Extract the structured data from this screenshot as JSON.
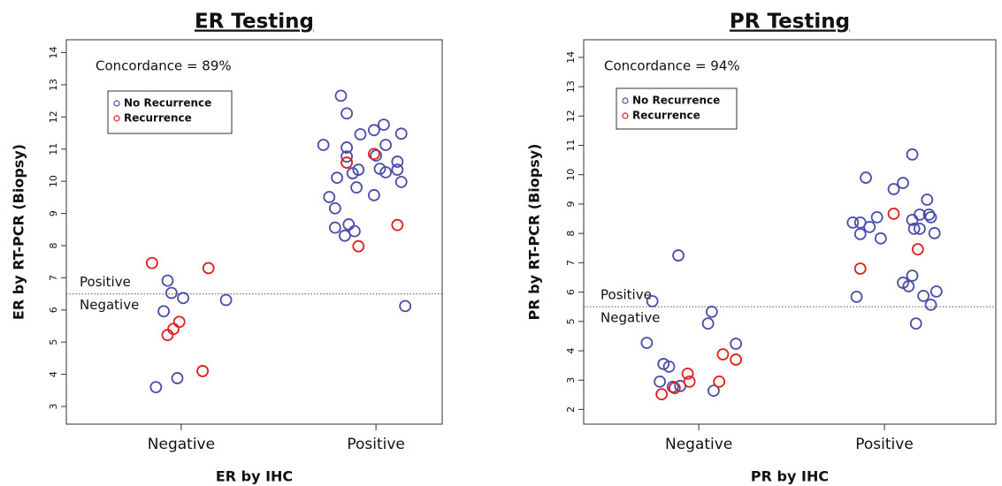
{
  "chart_data": [
    {
      "type": "scatter",
      "title": "ER Testing",
      "xlabel": "ER by IHC",
      "ylabel": "ER by RT-PCR (Biopsy)",
      "annotations": [
        "Concordance = 89%",
        "Positive",
        "Negative"
      ],
      "threshold": 6.5,
      "xlim": [
        0.41,
        2.34
      ],
      "ylim": [
        2.45,
        14.4
      ],
      "xticks": [
        {
          "value": 1,
          "label": "Negative"
        },
        {
          "value": 2,
          "label": "Positive"
        }
      ],
      "yticks": [
        3,
        4,
        5,
        6,
        7,
        8,
        9,
        10,
        11,
        12,
        13,
        14
      ],
      "legend": "upper left",
      "series": [
        {
          "name": "No Recurrence",
          "color": "#4b4fa8",
          "x": [
            0.93,
            0.95,
            1.01,
            0.91,
            1.23,
            0.87,
            0.98,
            1.82,
            1.85,
            1.73,
            1.85,
            1.92,
            2.04,
            1.99,
            2.05,
            2.13,
            1.85,
            2.0,
            2.11,
            1.91,
            2.02,
            1.88,
            2.05,
            1.8,
            2.11,
            2.13,
            1.9,
            1.99,
            1.76,
            1.79,
            1.86,
            1.79,
            1.89,
            1.84,
            2.15
          ],
          "values": [
            6.91,
            6.53,
            6.37,
            5.96,
            6.31,
            3.6,
            3.88,
            12.66,
            12.11,
            11.13,
            11.05,
            11.46,
            11.76,
            11.59,
            11.13,
            11.48,
            10.77,
            10.8,
            10.61,
            10.36,
            10.39,
            10.25,
            10.28,
            10.11,
            10.36,
            9.98,
            9.81,
            9.57,
            9.51,
            9.16,
            8.66,
            8.56,
            8.45,
            8.31,
            6.12
          ]
        },
        {
          "name": "Recurrence",
          "color": "#e02020",
          "x": [
            0.85,
            1.14,
            0.99,
            0.96,
            0.93,
            1.11,
            1.85,
            1.99,
            2.11,
            1.91
          ],
          "values": [
            7.46,
            7.3,
            5.63,
            5.41,
            5.22,
            4.1,
            10.58,
            10.85,
            8.64,
            7.98
          ]
        }
      ]
    },
    {
      "type": "scatter",
      "title": "PR Testing",
      "xlabel": "PR by IHC",
      "ylabel": "PR by RT-PCR (Biopsy)",
      "annotations": [
        "Concordance = 94%",
        "Positive",
        "Negative"
      ],
      "threshold": 5.5,
      "xlim": [
        0.38,
        2.6
      ],
      "ylim": [
        1.5,
        14.6
      ],
      "xticks": [
        {
          "value": 1,
          "label": "Negative"
        },
        {
          "value": 2,
          "label": "Positive"
        }
      ],
      "yticks": [
        2,
        3,
        4,
        5,
        6,
        7,
        8,
        9,
        10,
        11,
        12,
        13,
        14
      ],
      "legend": "upper left",
      "series": [
        {
          "name": "No Recurrence",
          "color": "#4b4fa8",
          "x": [
            0.89,
            0.75,
            1.07,
            1.05,
            0.72,
            1.2,
            0.81,
            0.84,
            0.79,
            0.9,
            0.86,
            1.08,
            2.15,
            1.9,
            2.1,
            2.05,
            2.23,
            1.96,
            2.15,
            2.24,
            2.25,
            2.19,
            1.83,
            1.87,
            1.92,
            2.16,
            2.19,
            1.87,
            1.98,
            2.27,
            2.15,
            2.1,
            2.13,
            1.85,
            2.21,
            2.28,
            2.25,
            2.17
          ],
          "values": [
            7.25,
            5.69,
            5.33,
            4.93,
            4.27,
            4.24,
            3.55,
            3.46,
            2.95,
            2.8,
            2.77,
            2.64,
            10.69,
            9.9,
            9.72,
            9.51,
            9.15,
            8.55,
            8.46,
            8.64,
            8.55,
            8.64,
            8.37,
            8.37,
            8.22,
            8.16,
            8.16,
            7.98,
            7.83,
            8.01,
            6.56,
            6.32,
            6.2,
            5.84,
            5.87,
            6.02,
            5.57,
            4.93
          ]
        },
        {
          "name": "Recurrence",
          "color": "#e02020",
          "x": [
            0.94,
            1.13,
            1.2,
            0.95,
            1.11,
            0.87,
            0.8,
            2.05,
            2.18,
            1.87
          ],
          "values": [
            3.22,
            3.88,
            3.7,
            2.95,
            2.95,
            2.73,
            2.52,
            8.67,
            7.46,
            6.8
          ]
        }
      ]
    }
  ]
}
